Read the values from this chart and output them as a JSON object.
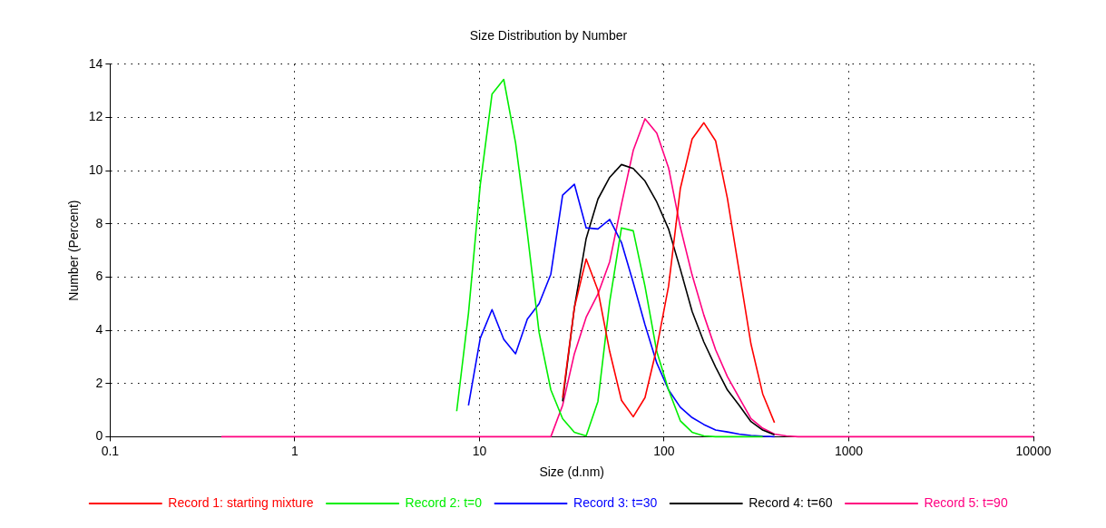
{
  "chart_data": {
    "type": "line",
    "title": "Size Distribution by Number",
    "xlabel": "Size (d.nm)",
    "ylabel": "Number (Percent)",
    "log": "x",
    "x": [
      0.4,
      0.4632,
      0.5365,
      0.6213,
      0.7195,
      0.8332,
      0.9649,
      1.117,
      1.294,
      1.499,
      1.736,
      2.01,
      2.328,
      2.696,
      3.122,
      3.615,
      4.187,
      4.849,
      5.615,
      6.503,
      7.531,
      8.721,
      10.1,
      11.7,
      13.54,
      15.69,
      18.17,
      21.04,
      24.36,
      28.21,
      32.67,
      37.84,
      43.82,
      50.75,
      58.77,
      68.06,
      78.82,
      91.28,
      105.7,
      122.4,
      141.8,
      164.2,
      190.1,
      220.2,
      255.0,
      295.3,
      342.0,
      396.1,
      458.7,
      531.2,
      615.1,
      712.4,
      825.0,
      955.4,
      1106,
      1281,
      1484,
      1718,
      1990,
      2305,
      2669,
      3091,
      3580,
      4145,
      4801,
      5560,
      6439,
      7456,
      8635,
      10000
    ],
    "series": [
      {
        "name": "Record 1: starting mixture",
        "color": "#ff0000",
        "x": [
          28.21,
          32.67,
          37.84,
          43.82,
          50.75,
          58.77,
          68.06,
          78.82,
          91.28,
          105.7,
          122.4,
          141.8,
          164.2,
          190.1,
          220.2,
          255.0,
          295.3,
          342.0,
          396.1
        ],
        "values": [
          1.47,
          4.85,
          6.68,
          5.5,
          3.2,
          1.37,
          0.75,
          1.47,
          3.34,
          5.65,
          9.32,
          11.19,
          11.8,
          11.12,
          8.96,
          6.22,
          3.49,
          1.61,
          0.53
        ]
      },
      {
        "name": "Record 2: t=0",
        "color": "#00ee00",
        "x": [
          7.531,
          8.721,
          10.1,
          11.7,
          13.54,
          15.69,
          18.17,
          21.04,
          24.36,
          28.21,
          32.67,
          37.84,
          43.82,
          50.75,
          58.77,
          68.06,
          78.82,
          91.28,
          105.7,
          122.4,
          141.8,
          164.2,
          190.1,
          220.2,
          255.0,
          295.3,
          342.0
        ],
        "values": [
          0.96,
          4.64,
          9.46,
          12.88,
          13.43,
          11.05,
          7.66,
          3.92,
          1.76,
          0.68,
          0.17,
          0.03,
          1.33,
          5.07,
          7.85,
          7.74,
          5.65,
          3.2,
          1.76,
          0.6,
          0.17,
          0.03,
          0,
          0,
          0,
          0,
          0
        ]
      },
      {
        "name": "Record 3: t=30",
        "color": "#0000ff",
        "x": [
          8.721,
          10.1,
          11.7,
          13.54,
          15.69,
          18.17,
          21.04,
          24.36,
          28.21,
          32.67,
          37.84,
          43.82,
          50.75,
          58.77,
          68.06,
          78.82,
          91.28,
          105.7,
          122.4,
          141.8,
          164.2,
          190.1,
          220.2,
          255.0,
          295.3,
          342.0,
          396.1
        ],
        "values": [
          1.18,
          3.7,
          4.78,
          3.66,
          3.12,
          4.42,
          5.0,
          6.11,
          9.08,
          9.49,
          7.85,
          7.81,
          8.17,
          7.3,
          5.79,
          4.21,
          2.77,
          1.76,
          1.11,
          0.72,
          0.46,
          0.25,
          0.18,
          0.1,
          0.05,
          0.02,
          0
        ]
      },
      {
        "name": "Record 4: t=60",
        "color": "#000000",
        "x": [
          28.21,
          32.67,
          37.84,
          43.82,
          50.75,
          58.77,
          68.06,
          78.82,
          91.28,
          105.7,
          122.4,
          141.8,
          164.2,
          190.1,
          220.2,
          255.0,
          295.3,
          342.0,
          396.1
        ],
        "values": [
          1.33,
          4.85,
          7.45,
          8.93,
          9.75,
          10.23,
          10.08,
          9.61,
          8.82,
          7.81,
          6.3,
          4.71,
          3.56,
          2.62,
          1.76,
          1.18,
          0.57,
          0.25,
          0.07
        ]
      },
      {
        "name": "Record 5: t=90",
        "color": "#ff0080",
        "values": [
          0,
          0,
          0,
          0,
          0,
          0,
          0,
          0,
          0,
          0,
          0,
          0,
          0,
          0,
          0,
          0,
          0,
          0,
          0,
          0,
          0,
          0,
          0,
          0,
          0,
          0,
          0,
          0,
          0,
          1.18,
          3.12,
          4.49,
          5.36,
          6.58,
          8.74,
          10.76,
          11.95,
          11.41,
          10.11,
          7.88,
          6.08,
          4.57,
          3.27,
          2.26,
          1.47,
          0.68,
          0.32,
          0.1,
          0.03,
          0,
          0,
          0,
          0,
          0,
          0,
          0,
          0,
          0,
          0,
          0,
          0,
          0,
          0,
          0,
          0,
          0,
          0,
          0,
          0,
          0
        ]
      }
    ],
    "xlim": [
      0.1,
      10000
    ],
    "xticks": [
      0.1,
      1,
      10,
      100,
      1000,
      10000
    ],
    "ylim": [
      0,
      14
    ],
    "yticks": [
      0,
      2,
      4,
      6,
      8,
      10,
      12,
      14
    ],
    "grid": true,
    "legend": "bottom",
    "marker": "none",
    "line_style": "solid"
  }
}
